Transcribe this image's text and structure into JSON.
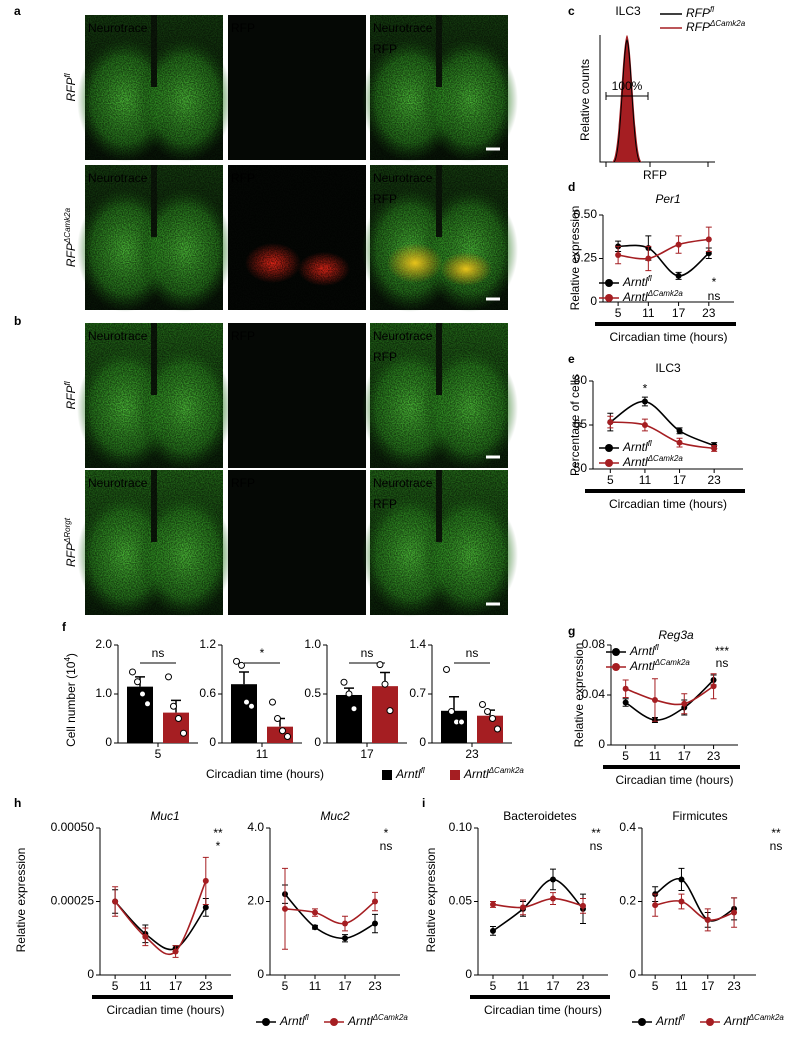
{
  "panel_letters": [
    "a",
    "b",
    "c",
    "d",
    "e",
    "f",
    "g",
    "h",
    "i"
  ],
  "image_rows": [
    {
      "genotype": {
        "text": "RFP",
        "sup": "fl"
      },
      "columns": [
        [
          {
            "text": "Neurotrace",
            "color": "#2ecc2e"
          }
        ],
        [
          {
            "text": "RFP",
            "color": "#e8262a"
          }
        ],
        [
          {
            "text": "Neurotrace",
            "color": "#2ecc2e"
          },
          {
            "text": "RFP",
            "color": "#b8362a"
          }
        ]
      ]
    },
    {
      "genotype": {
        "text": "RFP",
        "sup": "ΔCamk2a"
      },
      "columns": [
        [
          {
            "text": "Neurotrace",
            "color": "#2ecc2e"
          }
        ],
        [
          {
            "text": "RFP",
            "color": "#e8262a"
          }
        ],
        [
          {
            "text": "Neurotrace",
            "color": "#2ecc2e"
          },
          {
            "text": "RFP",
            "color": "#b8362a"
          }
        ]
      ]
    },
    {
      "genotype": {
        "text": "RFP",
        "sup": "fl"
      },
      "columns": [
        [
          {
            "text": "Neurotrace",
            "color": "#2ecc2e"
          }
        ],
        [
          {
            "text": "RFP",
            "color": "#e8262a"
          }
        ],
        [
          {
            "text": "Neurotrace",
            "color": "#2ecc2e"
          },
          {
            "text": "RFP",
            "color": "#b8362a"
          }
        ]
      ]
    },
    {
      "genotype": {
        "text": "RFP",
        "sup": "ΔRorgt"
      },
      "columns": [
        [
          {
            "text": "Neurotrace",
            "color": "#2ecc2e"
          }
        ],
        [
          {
            "text": "RFP",
            "color": "#e8262a"
          }
        ],
        [
          {
            "text": "Neurotrace",
            "color": "#2ecc2e"
          },
          {
            "text": "RFP",
            "color": "#b8362a"
          }
        ]
      ]
    }
  ],
  "chart_data": [
    {
      "type": "flow",
      "title": "ILC3",
      "xlabel": "RFP",
      "ylabel": "Relative counts",
      "gate_label": "100%",
      "series": [
        {
          "name": "RFP",
          "name_sup": "fl",
          "color": "#000000"
        },
        {
          "name": "RFP",
          "name_sup": "ΔCamk2a",
          "color": "#a51e22"
        }
      ]
    },
    {
      "type": "line",
      "title": "Per1",
      "title_italic": true,
      "ylabel": "Relative expression",
      "xlabel": "Circadian time (hours)",
      "x": [
        5,
        11,
        17,
        23
      ],
      "xlim": [
        2,
        28
      ],
      "xticks": [
        5,
        11,
        17,
        23
      ],
      "ylim": [
        0,
        0.5
      ],
      "yticks": [
        0,
        0.25,
        {
          "value": 0.5,
          "label": "0.50"
        }
      ],
      "series": [
        {
          "name": "Arntl",
          "name_sup": "fl",
          "color": "#000000",
          "values": [
            0.32,
            0.31,
            0.15,
            0.28
          ],
          "errors": [
            0.03,
            0.07,
            0.02,
            0.03
          ],
          "significance": "*"
        },
        {
          "name": "Arntl",
          "name_sup": "ΔCamk2a",
          "color": "#a51e22",
          "values": [
            0.27,
            0.25,
            0.33,
            0.36
          ],
          "errors": [
            0.05,
            0.07,
            0.05,
            0.07
          ],
          "significance": "ns"
        }
      ]
    },
    {
      "type": "line",
      "title": "ILC3",
      "ylabel": "Percentage of cells",
      "xlabel": "Circadian time (hours)",
      "x": [
        5,
        11,
        17,
        23
      ],
      "xlim": [
        2,
        28
      ],
      "xticks": [
        5,
        11,
        17,
        23
      ],
      "ylim": [
        50,
        80
      ],
      "yticks": [
        50,
        65,
        80
      ],
      "annotation": {
        "text": "*",
        "x": 11
      },
      "series": [
        {
          "name": "Arntl",
          "name_sup": "fl",
          "color": "#000000",
          "values": [
            66,
            73,
            63,
            58
          ],
          "errors": [
            3,
            1.5,
            1,
            1
          ]
        },
        {
          "name": "Arntl",
          "name_sup": "ΔCamk2a",
          "color": "#a51e22",
          "values": [
            66,
            65,
            59,
            57
          ],
          "errors": [
            2,
            2,
            1.5,
            1
          ]
        }
      ]
    },
    {
      "type": "bar",
      "categories": [
        "5"
      ],
      "ylabel": {
        "text": "Cell number (10",
        "sup": "4",
        "after": ")"
      },
      "ylim": [
        0,
        2
      ],
      "yticks": [
        0,
        {
          "value": 1,
          "label": "1.0"
        },
        {
          "value": 2,
          "label": "2.0"
        }
      ],
      "significance": "ns",
      "series": [
        {
          "color": "#000000",
          "values": [
            1.15
          ],
          "errors": [
            0.2
          ],
          "points": [
            [
              1.45,
              1.25,
              1.0,
              0.8
            ]
          ]
        },
        {
          "color": "#a51e22",
          "values": [
            0.62
          ],
          "errors": [
            0.25
          ],
          "points": [
            [
              1.35,
              0.75,
              0.5,
              0.2
            ]
          ]
        }
      ]
    },
    {
      "type": "bar",
      "categories": [
        "11"
      ],
      "xlabel": "Circadian time (hours)",
      "ylim": [
        0,
        1.2
      ],
      "yticks": [
        0,
        0.6,
        1.2
      ],
      "significance": "*",
      "series": [
        {
          "color": "#000000",
          "values": [
            0.72
          ],
          "errors": [
            0.15
          ],
          "points": [
            [
              1.0,
              0.95,
              0.5,
              0.45
            ]
          ]
        },
        {
          "color": "#a51e22",
          "values": [
            0.2
          ],
          "errors": [
            0.1
          ],
          "points": [
            [
              0.5,
              0.3,
              0.15,
              0.08
            ]
          ]
        }
      ]
    },
    {
      "type": "bar",
      "categories": [
        "17"
      ],
      "ylim": [
        0,
        1
      ],
      "yticks": [
        0,
        0.5,
        {
          "value": 1,
          "label": "1.0"
        }
      ],
      "significance": "ns",
      "series": [
        {
          "color": "#000000",
          "values": [
            0.49
          ],
          "errors": [
            0.07
          ],
          "points": [
            [
              0.62,
              0.5,
              0.35
            ]
          ]
        },
        {
          "color": "#a51e22",
          "values": [
            0.58
          ],
          "errors": [
            0.14
          ],
          "points": [
            [
              0.8,
              0.6,
              0.33
            ]
          ]
        }
      ]
    },
    {
      "type": "bar",
      "categories": [
        "23"
      ],
      "ylim": [
        0,
        1.4
      ],
      "yticks": [
        0,
        0.7,
        1.4
      ],
      "significance": "ns",
      "series": [
        {
          "name": "Arntl",
          "name_sup": "fl",
          "color": "#000000",
          "values": [
            0.46
          ],
          "errors": [
            0.2
          ],
          "points": [
            [
              1.05,
              0.45,
              0.3,
              0.3
            ]
          ]
        },
        {
          "name": "Arntl",
          "name_sup": "ΔCamk2a",
          "color": "#a51e22",
          "values": [
            0.39
          ],
          "errors": [
            0.08
          ],
          "points": [
            [
              0.55,
              0.45,
              0.35,
              0.2
            ]
          ]
        }
      ]
    },
    {
      "type": "line",
      "title": "Reg3a",
      "title_italic": true,
      "ylabel": "Relative expression",
      "xlabel": "Circadian time (hours)",
      "x": [
        5,
        11,
        17,
        23
      ],
      "xlim": [
        2,
        28
      ],
      "xticks": [
        5,
        11,
        17,
        23
      ],
      "ylim": [
        0,
        0.08
      ],
      "yticks": [
        0,
        0.04,
        0.08
      ],
      "series": [
        {
          "name": "Arntl",
          "name_sup": "fl",
          "color": "#000000",
          "values": [
            0.034,
            0.02,
            0.03,
            0.052
          ],
          "errors": [
            0.003,
            0.002,
            0.006,
            0.004
          ],
          "significance": "***"
        },
        {
          "name": "Arntl",
          "name_sup": "ΔCamk2a",
          "color": "#a51e22",
          "values": [
            0.045,
            0.036,
            0.033,
            0.047
          ],
          "errors": [
            0.007,
            0.017,
            0.008,
            0.01
          ],
          "significance": "ns"
        }
      ]
    },
    {
      "type": "line",
      "title": "Muc1",
      "title_italic": true,
      "ylabel": "Relative expression",
      "xlabel": "Circadian time (hours)",
      "x": [
        5,
        11,
        17,
        23
      ],
      "xlim": [
        2,
        28
      ],
      "xticks": [
        5,
        11,
        17,
        23
      ],
      "ylim": [
        0,
        0.0005
      ],
      "yticks": [
        0,
        0.00025,
        {
          "value": 0.0005,
          "label": "0.00050"
        }
      ],
      "series": [
        {
          "color": "#000000",
          "values": [
            0.00025,
            0.00014,
            9e-05,
            0.00023
          ],
          "errors": [
            4e-05,
            3e-05,
            1e-05,
            3e-05
          ],
          "significance": "**"
        },
        {
          "color": "#a51e22",
          "values": [
            0.00025,
            0.00013,
            8e-05,
            0.00032
          ],
          "errors": [
            5e-05,
            3e-05,
            2e-05,
            8e-05
          ],
          "significance": "*"
        }
      ]
    },
    {
      "type": "line",
      "title": "Muc2",
      "title_italic": true,
      "x": [
        5,
        11,
        17,
        23
      ],
      "xlim": [
        2,
        28
      ],
      "xticks": [
        5,
        11,
        17,
        23
      ],
      "ylim": [
        0,
        4
      ],
      "yticks": [
        0,
        {
          "value": 2,
          "label": "2.0"
        },
        {
          "value": 4,
          "label": "4.0"
        }
      ],
      "series": [
        {
          "name": "Arntl",
          "name_sup": "fl",
          "color": "#000000",
          "values": [
            2.2,
            1.3,
            1.0,
            1.4
          ],
          "errors": [
            0.25,
            0.05,
            0.1,
            0.25
          ],
          "significance": "*"
        },
        {
          "name": "Arntl",
          "name_sup": "ΔCamk2a",
          "color": "#a51e22",
          "values": [
            1.8,
            1.7,
            1.4,
            2.0
          ],
          "errors": [
            1.1,
            0.1,
            0.2,
            0.25
          ],
          "significance": "ns"
        }
      ]
    },
    {
      "type": "line",
      "title": "Bacteroidetes",
      "ylabel": "Relative expression",
      "xlabel": "Circadian time (hours)",
      "x": [
        5,
        11,
        17,
        23
      ],
      "xlim": [
        2,
        28
      ],
      "xticks": [
        5,
        11,
        17,
        23
      ],
      "ylim": [
        0,
        0.1
      ],
      "yticks": [
        0,
        0.05,
        {
          "value": 0.1,
          "label": "0.10"
        }
      ],
      "series": [
        {
          "color": "#000000",
          "values": [
            0.03,
            0.045,
            0.065,
            0.045
          ],
          "errors": [
            0.003,
            0.005,
            0.007,
            0.01
          ],
          "significance": "**"
        },
        {
          "color": "#a51e22",
          "values": [
            0.048,
            0.046,
            0.052,
            0.047
          ],
          "errors": [
            0.002,
            0.005,
            0.004,
            0.005
          ],
          "significance": "ns"
        }
      ]
    },
    {
      "type": "line",
      "title": "Firmicutes",
      "x": [
        5,
        11,
        17,
        23
      ],
      "xlim": [
        2,
        28
      ],
      "xticks": [
        5,
        11,
        17,
        23
      ],
      "ylim": [
        0,
        0.4
      ],
      "yticks": [
        0,
        0.2,
        0.4
      ],
      "series": [
        {
          "name": "Arntl",
          "name_sup": "fl",
          "color": "#000000",
          "values": [
            0.22,
            0.26,
            0.15,
            0.18
          ],
          "errors": [
            0.02,
            0.03,
            0.02,
            0.03
          ],
          "significance": "**"
        },
        {
          "name": "Arntl",
          "name_sup": "ΔCamk2a",
          "color": "#a51e22",
          "values": [
            0.19,
            0.2,
            0.15,
            0.17
          ],
          "errors": [
            0.03,
            0.02,
            0.03,
            0.04
          ],
          "significance": "ns"
        }
      ]
    }
  ]
}
